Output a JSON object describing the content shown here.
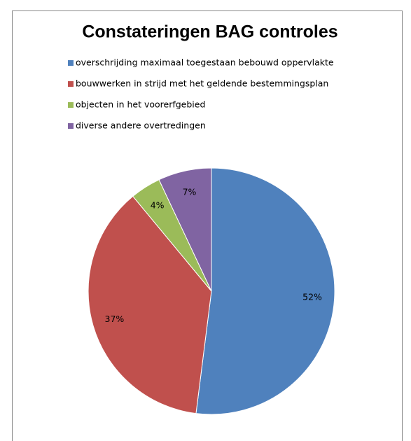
{
  "chart_data": {
    "type": "pie",
    "title": "Constateringen BAG controles",
    "categories": [
      "overschrijding maximaal toegestaan bebouwd oppervlakte",
      "bouwwerken in strijd met het geldende bestemmingsplan",
      "objecten in het voorerfgebied",
      "diverse andere overtredingen"
    ],
    "values": [
      52,
      37,
      4,
      7
    ],
    "value_labels": [
      "52%",
      "37%",
      "4%",
      "7%"
    ],
    "colors": [
      "#4f81bd",
      "#c0504d",
      "#9bbb59",
      "#8064a2"
    ],
    "legend": "top"
  }
}
